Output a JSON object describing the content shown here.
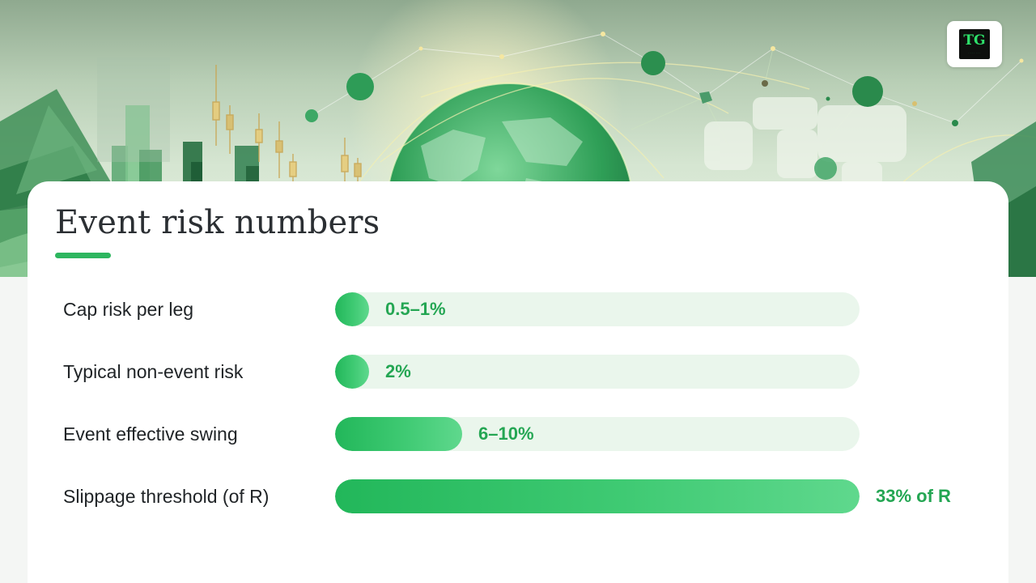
{
  "colors": {
    "accent": "#2db65f",
    "bar_fill": "#2fbf66",
    "track": "#eaf6ec",
    "value_text": "#24a653",
    "title_text": "#2b2f33"
  },
  "logo": {
    "mark": "TG",
    "icon": "brand-logo-icon"
  },
  "chart_data": {
    "type": "bar",
    "orientation": "horizontal",
    "title": "Event risk numbers",
    "categories": [
      "Cap risk per leg",
      "Typical non-event risk",
      "Event effective swing",
      "Slippage threshold (of R)"
    ],
    "value_labels": [
      "0.5–1%",
      "2%",
      "6–10%",
      "33% of R"
    ],
    "values": [
      1,
      2,
      8,
      33
    ],
    "xlim": [
      0,
      33
    ],
    "grid": false,
    "legend": "none"
  }
}
